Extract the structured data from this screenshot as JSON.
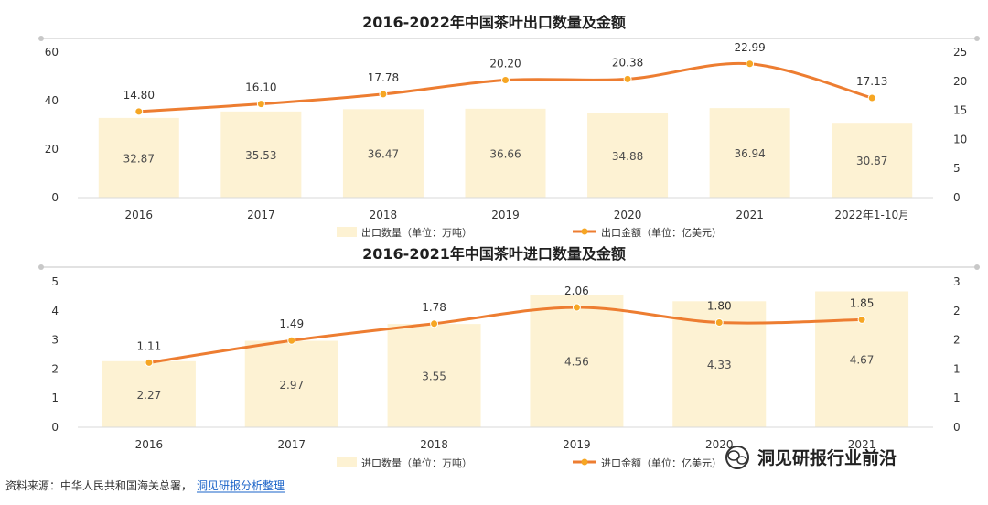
{
  "colors": {
    "bar": "#fdf2d3",
    "line": "#ed7d31",
    "axis": "#d9d9d9",
    "marker": "#f6a623"
  },
  "chart_data": [
    {
      "type": "bar+line",
      "title": "2016-2022年中国茶叶出口数量及金额",
      "categories": [
        "2016",
        "2017",
        "2018",
        "2019",
        "2020",
        "2021",
        "2022年1-10月"
      ],
      "series": [
        {
          "name": "出口数量（单位：万吨）",
          "type": "bar",
          "axis": "left",
          "values": [
            32.87,
            35.53,
            36.47,
            36.66,
            34.88,
            36.94,
            30.87
          ]
        },
        {
          "name": "出口金额（单位：亿美元）",
          "type": "line",
          "axis": "right",
          "values": [
            14.8,
            16.1,
            17.78,
            20.2,
            20.38,
            22.99,
            17.13
          ]
        }
      ],
      "y_left": {
        "range": [
          0,
          60
        ],
        "ticks": [
          "0",
          "20",
          "40",
          "60"
        ]
      },
      "y_right": {
        "range": [
          0,
          25
        ],
        "ticks": [
          "0",
          "5",
          "10",
          "15",
          "20",
          "25"
        ]
      },
      "legend": "bottom-center"
    },
    {
      "type": "bar+line",
      "title": "2016-2021年中国茶叶进口数量及金额",
      "categories": [
        "2016",
        "2017",
        "2018",
        "2019",
        "2020",
        "2021"
      ],
      "series": [
        {
          "name": "进口数量（单位：万吨）",
          "type": "bar",
          "axis": "left",
          "values": [
            2.27,
            2.97,
            3.55,
            4.56,
            4.33,
            4.67
          ]
        },
        {
          "name": "进口金额（单位：亿美元）",
          "type": "line",
          "axis": "right",
          "values": [
            1.11,
            1.49,
            1.78,
            2.06,
            1.8,
            1.85
          ]
        }
      ],
      "y_left": {
        "range": [
          0,
          5
        ],
        "ticks": [
          "0",
          "1",
          "2",
          "3",
          "4",
          "5"
        ]
      },
      "y_right": {
        "range": [
          0,
          2.5
        ],
        "ticks": [
          "0",
          "1",
          "1",
          "2",
          "2",
          "3"
        ]
      },
      "legend": "bottom-center"
    }
  ],
  "footer": {
    "source_prefix": "资料来源：中华人民共和国海关总署，",
    "source_link": "洞见研报分析整理",
    "brand": "洞见研报行业前沿"
  }
}
